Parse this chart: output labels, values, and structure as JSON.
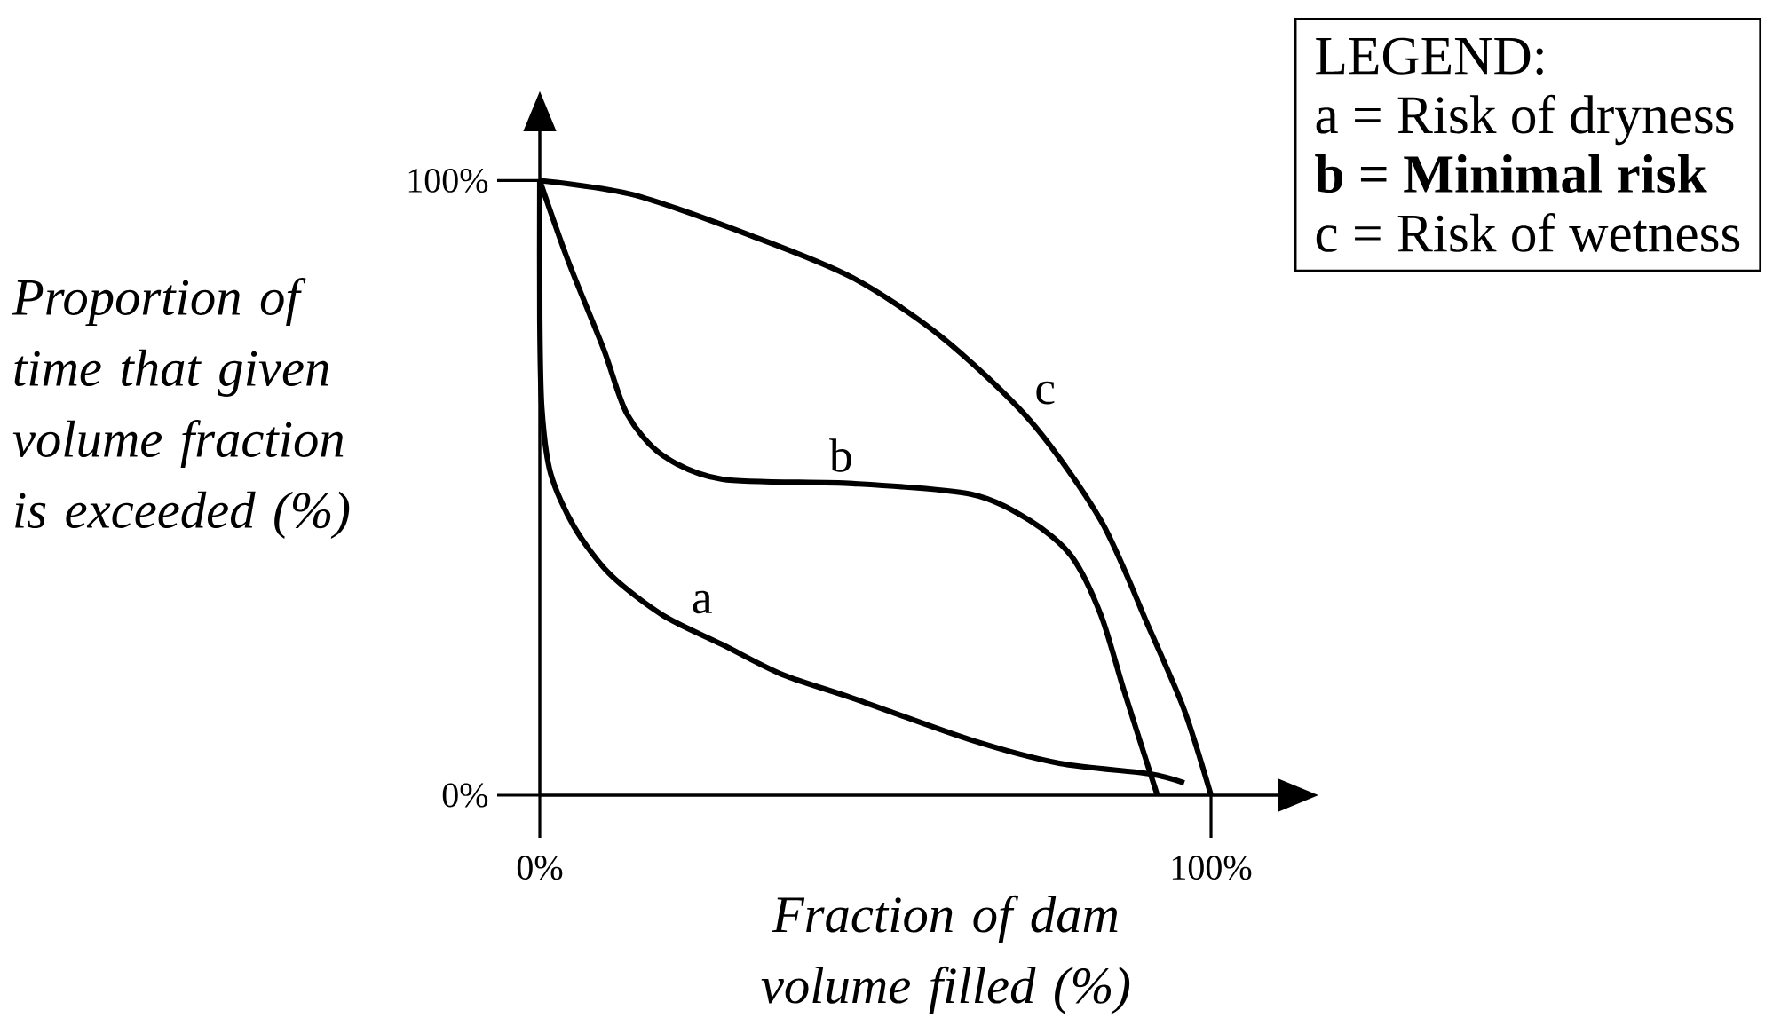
{
  "chart_data": {
    "type": "line",
    "xlabel": "Fraction of dam volume filled (%)",
    "ylabel": "Proportion of time that given volume fraction is exceeded (%)",
    "legend_title": "LEGEND:",
    "annotations": [
      "a = Risk of dryness",
      "**b = Minimal risk**",
      "c = Risk of wetness"
    ],
    "xlim": [
      0,
      110
    ],
    "ylim": [
      0,
      108
    ],
    "xticks": [
      {
        "value": 0,
        "label": "0%"
      },
      {
        "value": 100,
        "label": "100%"
      }
    ],
    "yticks": [
      {
        "value": 0,
        "label": "0%"
      },
      {
        "value": 100,
        "label": "100%"
      }
    ],
    "marker": "none",
    "line_style": "solid",
    "grid": false,
    "series": [
      {
        "name": "a",
        "color": "#000000",
        "x": [
          0,
          0,
          0.3,
          1.6,
          5.1,
          10.4,
          18.3,
          27.2,
          36,
          46.6,
          64.2,
          77.4,
          90.7,
          96
        ],
        "values": [
          100,
          77.5,
          63,
          52.4,
          43.7,
          36,
          29.3,
          24.5,
          19.7,
          15.8,
          9,
          5.2,
          3.5,
          2
        ]
      },
      {
        "name": "b",
        "color": "#000000",
        "x": [
          0,
          4.2,
          9.5,
          13,
          18.3,
          27.2,
          46.6,
          64.2,
          73,
          79.2,
          83.6,
          87.1,
          92
        ],
        "values": [
          100,
          87,
          72.6,
          62,
          55.3,
          51.4,
          50.7,
          49,
          44.7,
          38.9,
          29.3,
          16.8,
          0
        ]
      },
      {
        "name": "c",
        "color": "#000000",
        "x": [
          0,
          13.9,
          31.6,
          46.6,
          59.8,
          73,
          83.6,
          90.7,
          96,
          100
        ],
        "values": [
          100,
          97.7,
          91,
          84.2,
          74.6,
          61,
          44.7,
          27.4,
          13.9,
          0
        ]
      }
    ]
  }
}
